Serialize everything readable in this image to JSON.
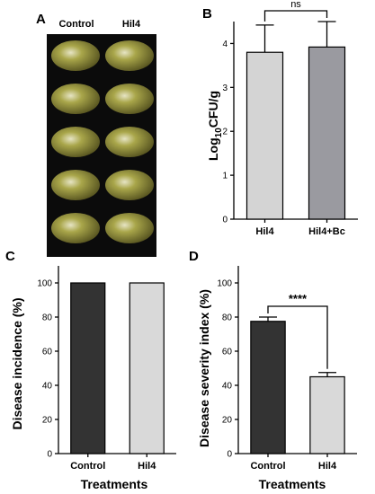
{
  "panels": {
    "A": {
      "label": "A",
      "columns": [
        "Control",
        "Hil4"
      ],
      "rows": 5,
      "colors": {
        "bg": "#0b0b0b",
        "grape": "#a9a64a",
        "grape_dark": "#55521f",
        "highlight": "#e6e4c4"
      }
    }
  },
  "chart_data": [
    {
      "id": "B",
      "panel_label": "B",
      "type": "bar",
      "categories": [
        "Hil4",
        "Hil4+Bc"
      ],
      "values": [
        3.8,
        3.92
      ],
      "errors": [
        0.62,
        0.58
      ],
      "ylabel_pre": "Log",
      "ylabel_sub": "10",
      "ylabel_post": "CFU/g",
      "xlabel": "",
      "ylim": [
        0,
        4.5
      ],
      "yticks": [
        "0",
        "1",
        "2",
        "3",
        "4"
      ],
      "colors": [
        "#d4d4d4",
        "#9a9aa0"
      ],
      "significance": "ns",
      "grid": false,
      "legend": "none"
    },
    {
      "id": "C",
      "panel_label": "C",
      "type": "bar",
      "categories": [
        "Control",
        "Hil4"
      ],
      "values": [
        100,
        100
      ],
      "errors": [
        0,
        0
      ],
      "ylabel": "Disease incidence (%)",
      "xlabel": "Treatments",
      "ylim": [
        0,
        110
      ],
      "yticks": [
        "0",
        "20",
        "40",
        "60",
        "80",
        "100"
      ],
      "colors": [
        "#333333",
        "#d9d9d9"
      ],
      "significance": "",
      "grid": false,
      "legend": "none"
    },
    {
      "id": "D",
      "panel_label": "D",
      "type": "bar",
      "categories": [
        "Control",
        "Hil4"
      ],
      "values": [
        77.5,
        45
      ],
      "errors": [
        2.5,
        2.5
      ],
      "ylabel": "Disease severity index (%)",
      "xlabel": "Treatments",
      "ylim": [
        0,
        110
      ],
      "yticks": [
        "0",
        "20",
        "40",
        "60",
        "80",
        "100"
      ],
      "colors": [
        "#333333",
        "#d9d9d9"
      ],
      "significance": "****",
      "grid": false,
      "legend": "none"
    }
  ]
}
